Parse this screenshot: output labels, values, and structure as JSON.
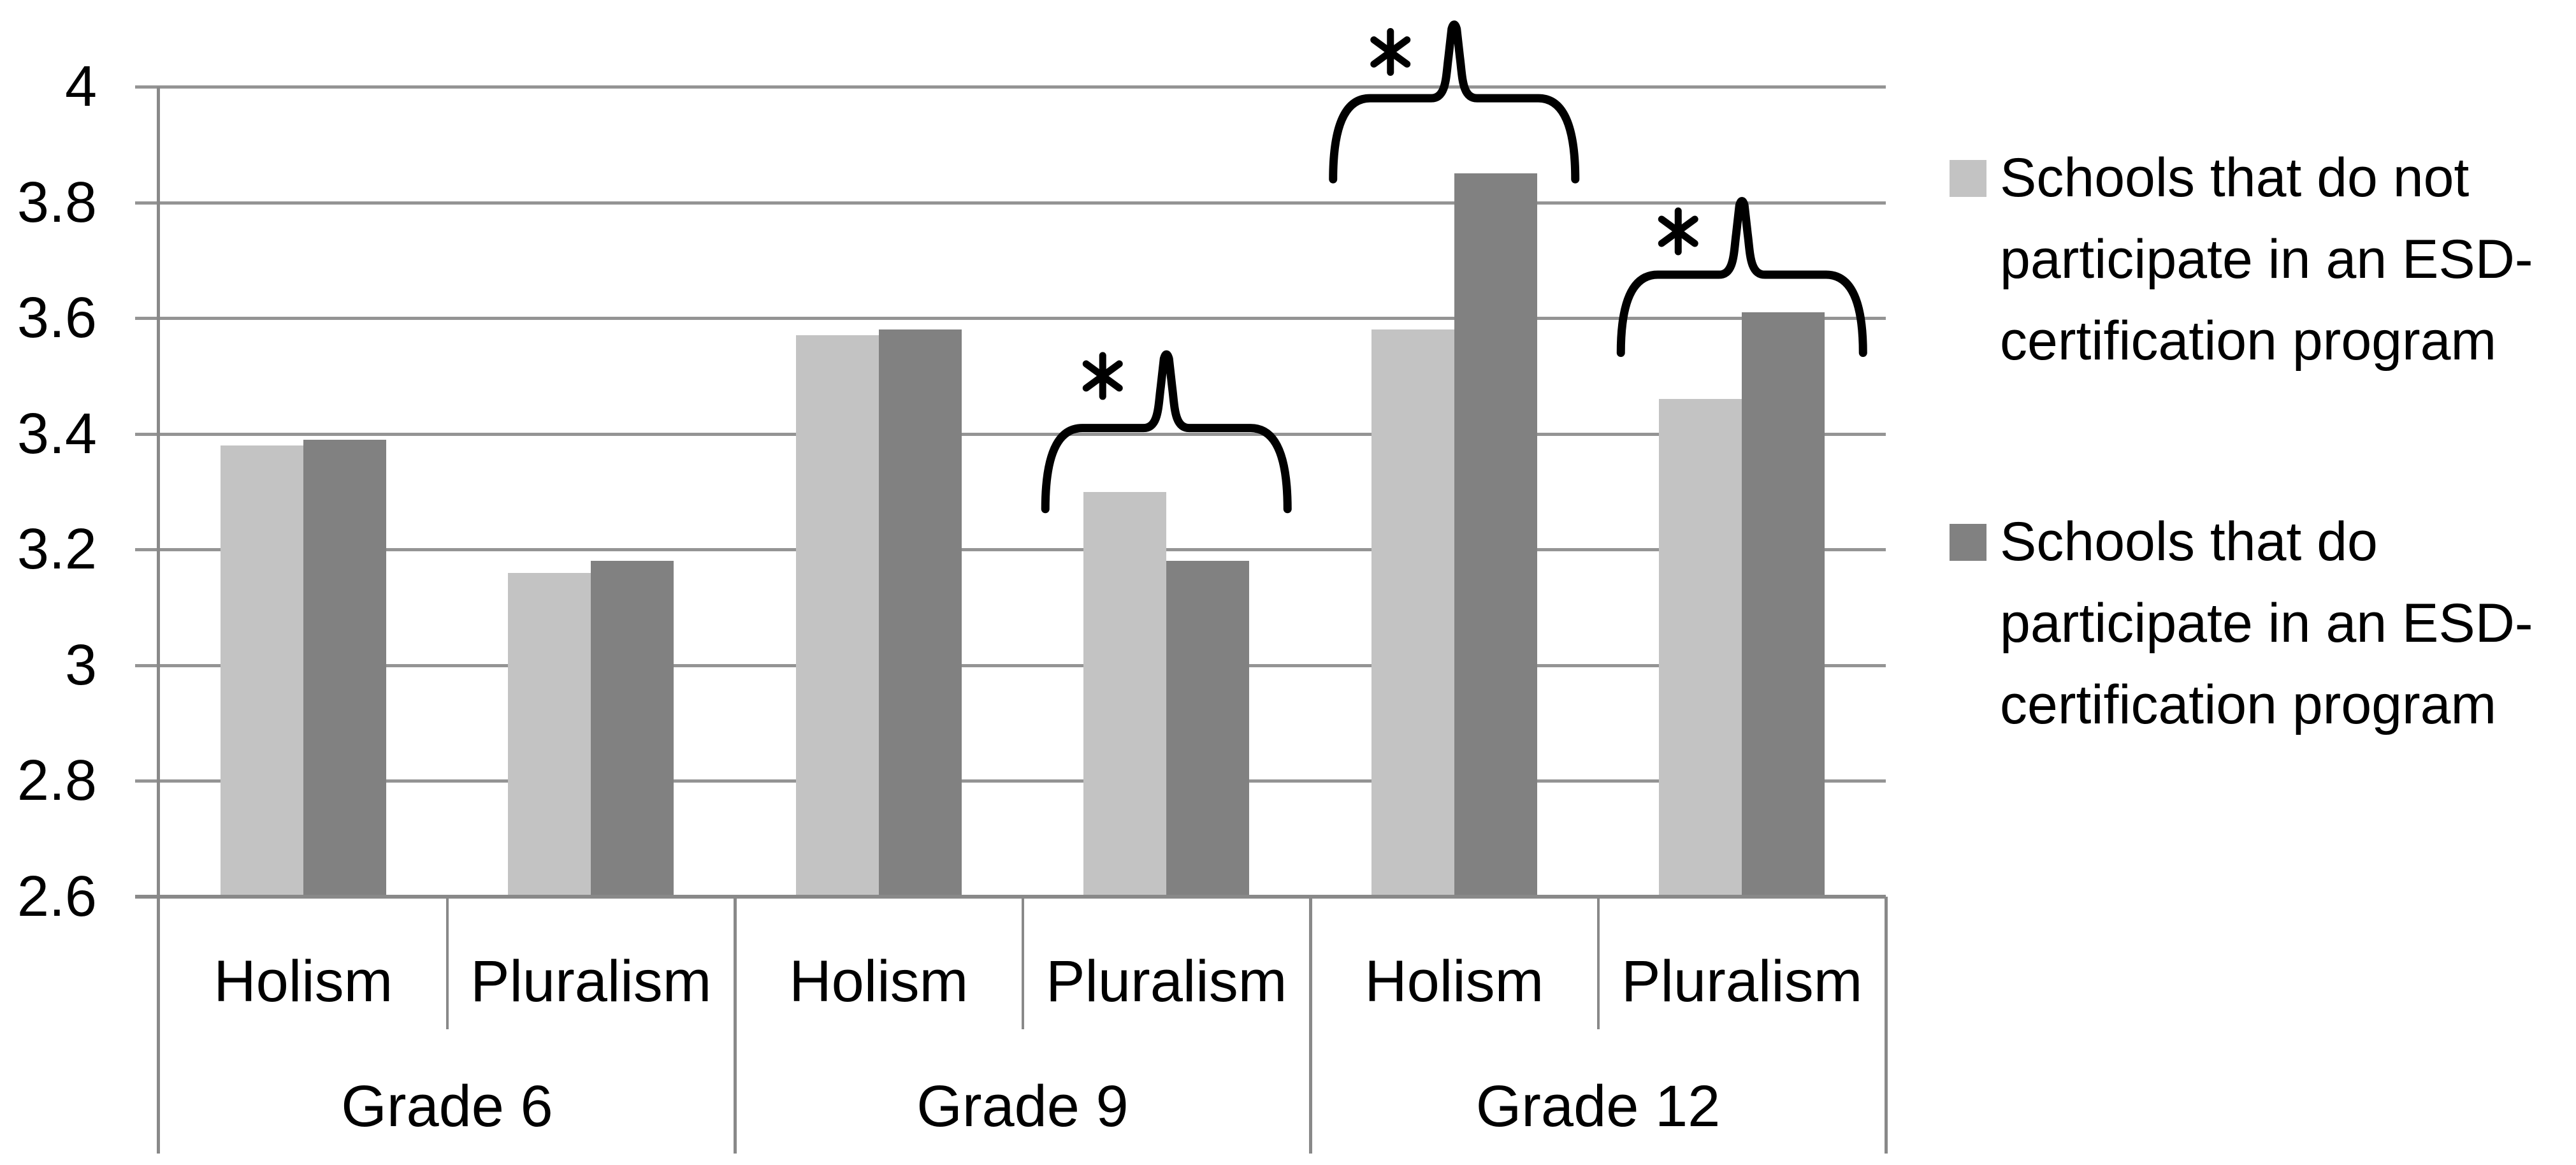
{
  "chart_data": {
    "type": "bar",
    "title": "",
    "xlabel": "",
    "ylabel": "",
    "ylim": [
      2.6,
      4
    ],
    "y_tick_values": [
      4,
      3.8,
      3.6,
      3.4,
      3.2,
      3,
      2.8,
      2.6
    ],
    "y_tick_labels": [
      "4",
      "3.8",
      "3.6",
      "3.4",
      "3.2",
      "3",
      "2.8",
      "2.6"
    ],
    "grid": "horizontal",
    "legend_position": "right",
    "category_labels": [
      "Holism",
      "Pluralism",
      "Holism",
      "Pluralism",
      "Holism",
      "Pluralism"
    ],
    "group_labels": [
      "Grade 6",
      "Grade 9",
      "Grade 12"
    ],
    "series": [
      {
        "name": "Schools that do not participate in an ESD-certification program",
        "color": "#c3c3c3",
        "values": [
          3.38,
          3.16,
          3.57,
          3.3,
          3.58,
          3.46
        ]
      },
      {
        "name": "Schools that do participate in an ESD-certification program",
        "color": "#818181",
        "values": [
          3.39,
          3.18,
          3.58,
          3.18,
          3.85,
          3.61
        ]
      }
    ],
    "significance_markers": [
      {
        "symbol": "*",
        "category_index": 3,
        "hook_v": 3.27,
        "body_v": 3.41,
        "tip_v": 3.545,
        "star_v": 3.5
      },
      {
        "symbol": "*",
        "category_index": 4,
        "hook_v": 3.84,
        "body_v": 3.98,
        "tip_v": 4.115,
        "star_v": 4.06
      },
      {
        "symbol": "*",
        "category_index": 5,
        "hook_v": 3.54,
        "body_v": 3.675,
        "tip_v": 3.81,
        "star_v": 3.75
      }
    ],
    "legend": {
      "items": [
        {
          "label": "Schools that do not participate in an ESD-certification program",
          "lines": [
            "Schools that do not",
            "participate in an ESD-",
            "certification program"
          ],
          "color": "#c3c3c3"
        },
        {
          "label": "Schools that do participate in an ESD-certification program",
          "lines": [
            "Schools that do",
            "participate in an ESD-",
            "certification program"
          ],
          "color": "#818181"
        }
      ]
    }
  }
}
